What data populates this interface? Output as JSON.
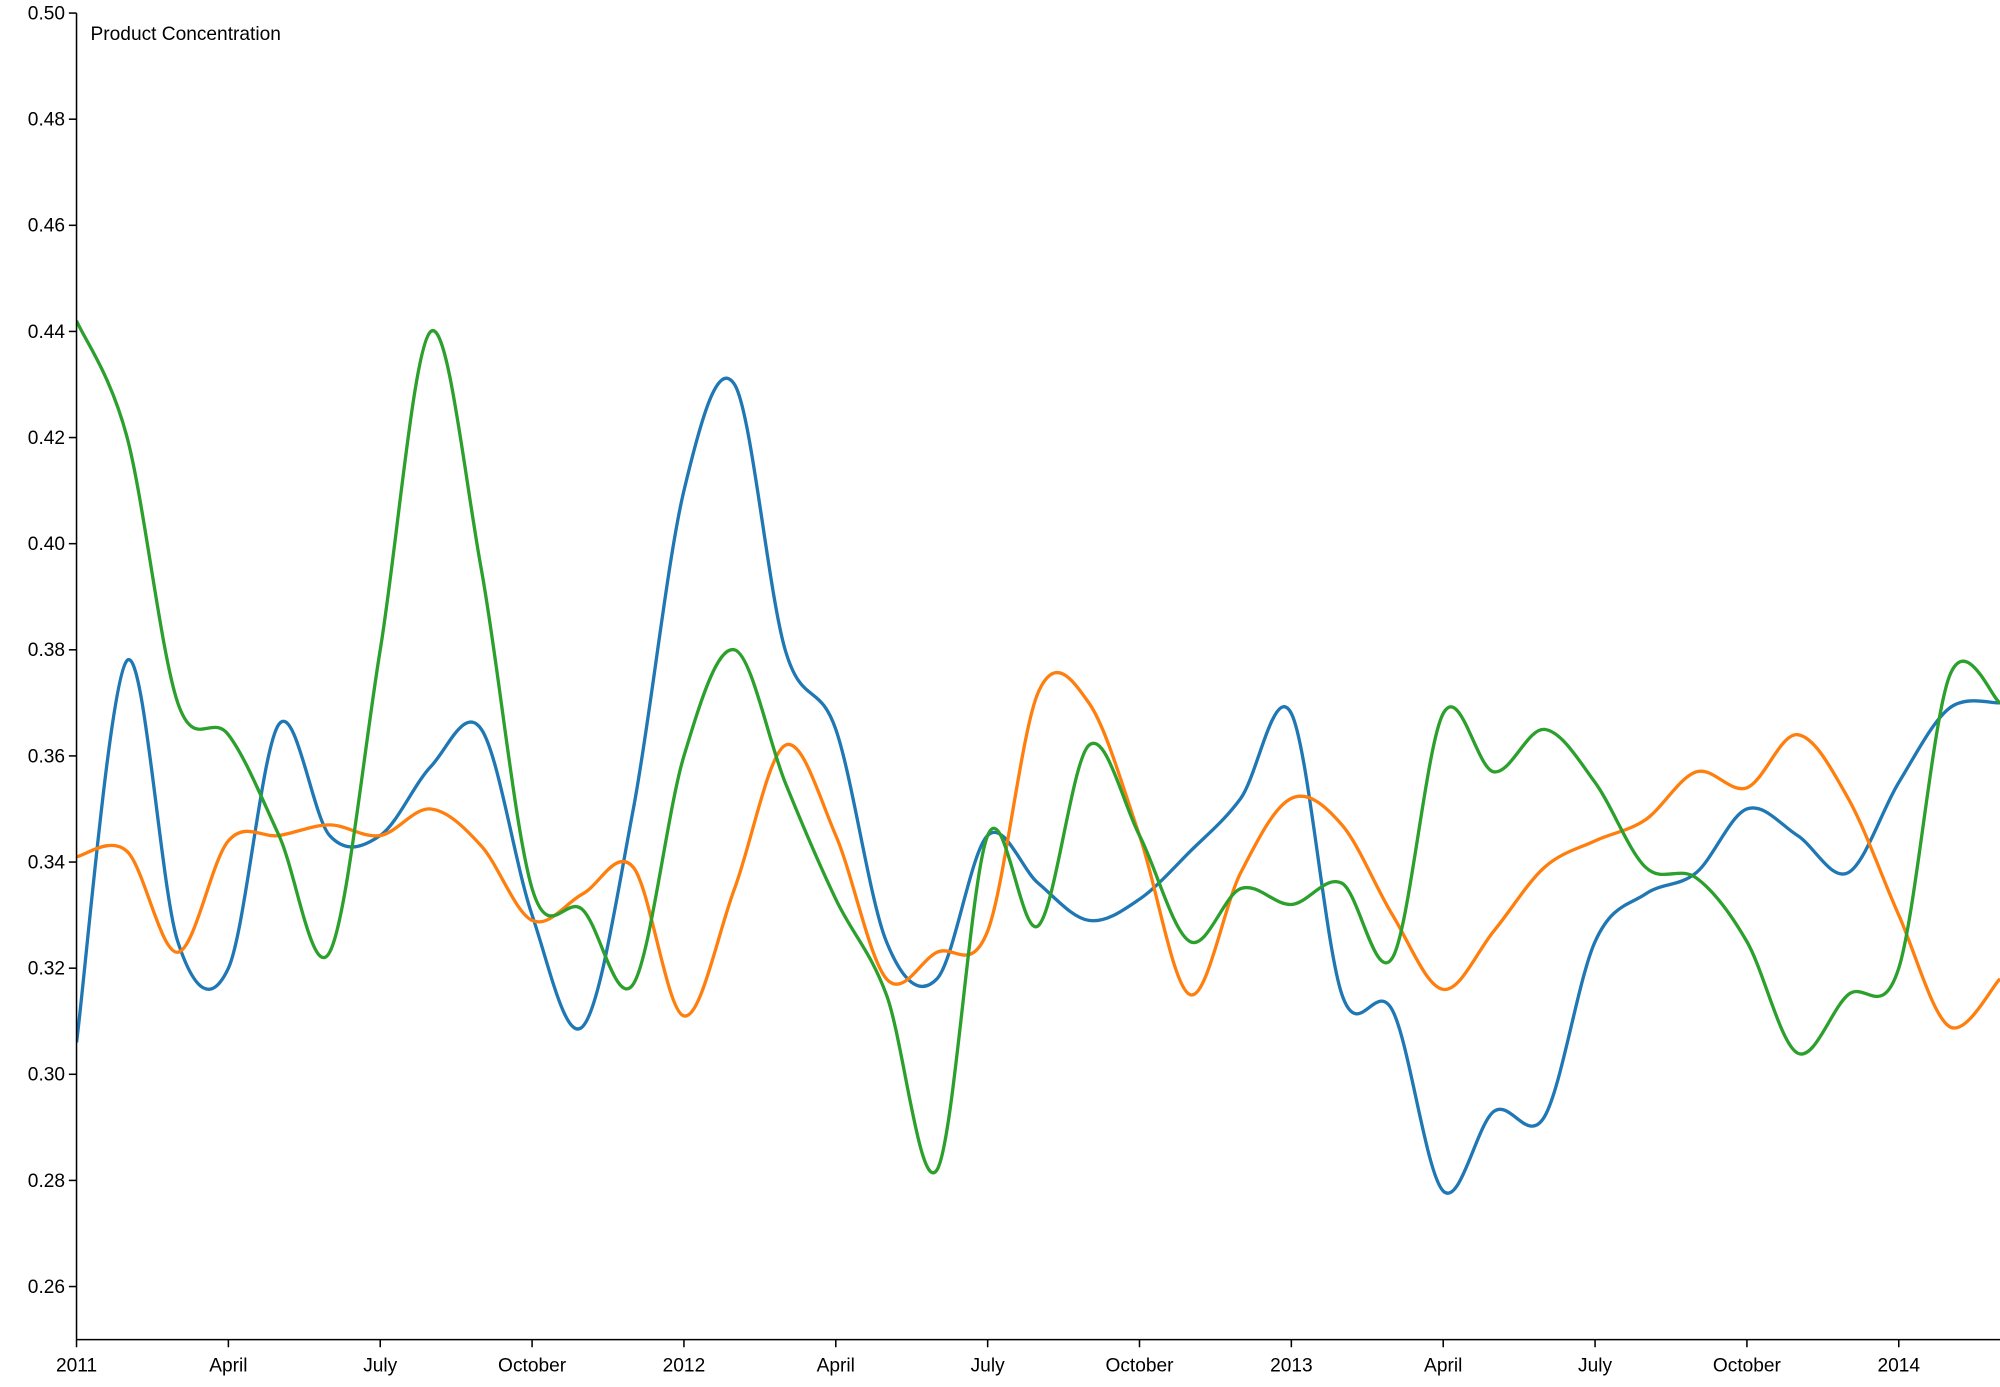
{
  "chart_data": {
    "type": "line",
    "y_label": "Product Concentration",
    "x": [
      "2011-01",
      "2011-02",
      "2011-03",
      "2011-04",
      "2011-05",
      "2011-06",
      "2011-07",
      "2011-08",
      "2011-09",
      "2011-10",
      "2011-11",
      "2011-12",
      "2012-01",
      "2012-02",
      "2012-03",
      "2012-04",
      "2012-05",
      "2012-06",
      "2012-07",
      "2012-08",
      "2012-09",
      "2012-10",
      "2012-11",
      "2012-12",
      "2013-01",
      "2013-02",
      "2013-03",
      "2013-04",
      "2013-05",
      "2013-06",
      "2013-07",
      "2013-08",
      "2013-09",
      "2013-10",
      "2013-11",
      "2013-12",
      "2014-01",
      "2014-02",
      "2014-03"
    ],
    "series": [
      {
        "color": "#1f77b4",
        "values": [
          0.306,
          0.378,
          0.325,
          0.32,
          0.366,
          0.345,
          0.345,
          0.358,
          0.365,
          0.33,
          0.309,
          0.35,
          0.41,
          0.43,
          0.38,
          0.365,
          0.325,
          0.318,
          0.345,
          0.336,
          0.329,
          0.333,
          0.342,
          0.352,
          0.368,
          0.315,
          0.312,
          0.278,
          0.293,
          0.292,
          0.325,
          0.334,
          0.338,
          0.35,
          0.345,
          0.338,
          0.355,
          0.369,
          0.37
        ]
      },
      {
        "color": "#ff7f0e",
        "values": [
          0.341,
          0.342,
          0.323,
          0.344,
          0.345,
          0.347,
          0.345,
          0.35,
          0.343,
          0.329,
          0.334,
          0.339,
          0.311,
          0.335,
          0.362,
          0.345,
          0.318,
          0.323,
          0.327,
          0.372,
          0.37,
          0.345,
          0.315,
          0.338,
          0.352,
          0.347,
          0.33,
          0.316,
          0.327,
          0.339,
          0.344,
          0.348,
          0.357,
          0.354,
          0.364,
          0.352,
          0.33,
          0.309,
          0.318
        ]
      },
      {
        "color": "#2ca02c",
        "values": [
          0.442,
          0.42,
          0.37,
          0.364,
          0.345,
          0.323,
          0.38,
          0.44,
          0.395,
          0.335,
          0.331,
          0.317,
          0.36,
          0.38,
          0.355,
          0.333,
          0.315,
          0.282,
          0.345,
          0.328,
          0.362,
          0.345,
          0.325,
          0.335,
          0.332,
          0.336,
          0.322,
          0.368,
          0.357,
          0.365,
          0.355,
          0.339,
          0.337,
          0.325,
          0.304,
          0.315,
          0.32,
          0.375,
          0.37
        ]
      }
    ],
    "xlim": [
      "2011-01",
      "2014-03"
    ],
    "xticks": [
      {
        "value": "2011-01",
        "label": "2011"
      },
      {
        "value": "2011-04",
        "label": "April"
      },
      {
        "value": "2011-07",
        "label": "July"
      },
      {
        "value": "2011-10",
        "label": "October"
      },
      {
        "value": "2012-01",
        "label": "2012"
      },
      {
        "value": "2012-04",
        "label": "April"
      },
      {
        "value": "2012-07",
        "label": "July"
      },
      {
        "value": "2012-10",
        "label": "October"
      },
      {
        "value": "2013-01",
        "label": "2013"
      },
      {
        "value": "2013-04",
        "label": "April"
      },
      {
        "value": "2013-07",
        "label": "July"
      },
      {
        "value": "2013-10",
        "label": "October"
      },
      {
        "value": "2014-01",
        "label": "2014"
      }
    ],
    "ylim": [
      0.25,
      0.5
    ],
    "yticks": [
      0.26,
      0.28,
      {
        "value": 0.3,
        "label": "0.30"
      },
      0.32,
      0.34,
      0.36,
      0.38,
      {
        "value": 0.4,
        "label": "0.40"
      },
      0.42,
      0.44,
      0.46,
      0.48,
      {
        "value": 0.5,
        "label": "0.50"
      }
    ]
  }
}
